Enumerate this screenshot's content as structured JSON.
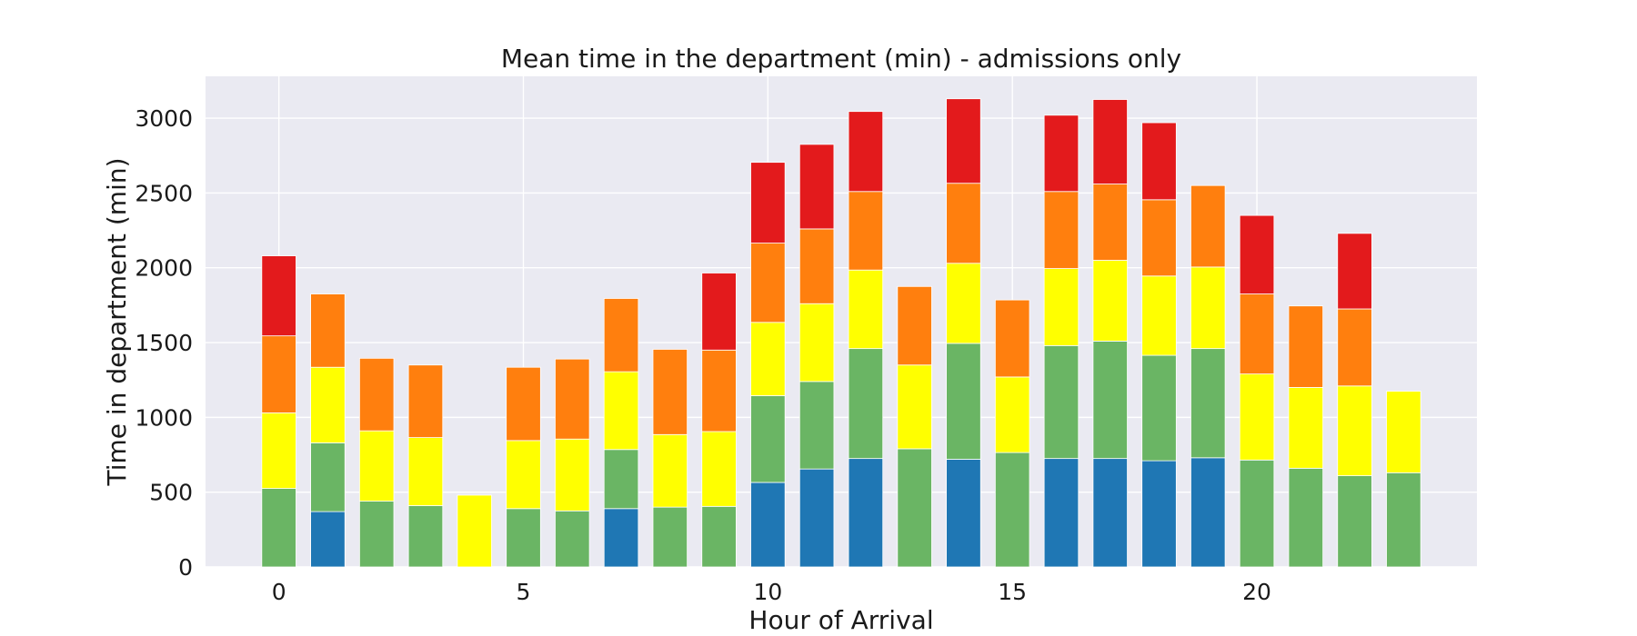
{
  "chart_data": {
    "type": "bar",
    "stacked": true,
    "title": "Mean time in the department (min) - admissions only",
    "xlabel": "Hour of Arrival",
    "ylabel": "Time in department (min)",
    "x": [
      0,
      1,
      2,
      3,
      4,
      5,
      6,
      7,
      8,
      9,
      10,
      11,
      12,
      13,
      14,
      15,
      16,
      17,
      18,
      19,
      20,
      21,
      22,
      23
    ],
    "xticks": [
      0,
      5,
      10,
      15,
      20
    ],
    "yticks": [
      0,
      500,
      1000,
      1500,
      2000,
      2500,
      3000
    ],
    "xlim": [
      -1.5,
      24.5
    ],
    "ylim": [
      0,
      3280
    ],
    "grid": true,
    "series": [
      {
        "color": "#1f77b4",
        "values": [
          0,
          370,
          0,
          0,
          0,
          0,
          0,
          390,
          0,
          0,
          565,
          655,
          725,
          0,
          720,
          0,
          725,
          725,
          710,
          730,
          0,
          0,
          0,
          0
        ]
      },
      {
        "color": "#6ab564",
        "values": [
          525,
          460,
          440,
          410,
          0,
          390,
          375,
          395,
          400,
          405,
          580,
          585,
          735,
          790,
          775,
          765,
          755,
          785,
          705,
          730,
          715,
          660,
          610,
          630
        ]
      },
      {
        "color": "#ffff00",
        "values": [
          505,
          505,
          470,
          455,
          480,
          455,
          480,
          520,
          485,
          500,
          490,
          520,
          525,
          560,
          535,
          505,
          515,
          540,
          530,
          545,
          575,
          540,
          600,
          545
        ]
      },
      {
        "color": "#ff7f0e",
        "values": [
          515,
          490,
          485,
          485,
          0,
          490,
          535,
          490,
          570,
          545,
          530,
          500,
          525,
          525,
          535,
          515,
          515,
          510,
          510,
          545,
          535,
          545,
          515,
          0
        ]
      },
      {
        "color": "#e31a1c",
        "values": [
          535,
          0,
          0,
          0,
          0,
          0,
          0,
          0,
          0,
          515,
          540,
          565,
          535,
          0,
          565,
          0,
          510,
          565,
          515,
          0,
          525,
          0,
          505,
          0
        ]
      }
    ]
  }
}
